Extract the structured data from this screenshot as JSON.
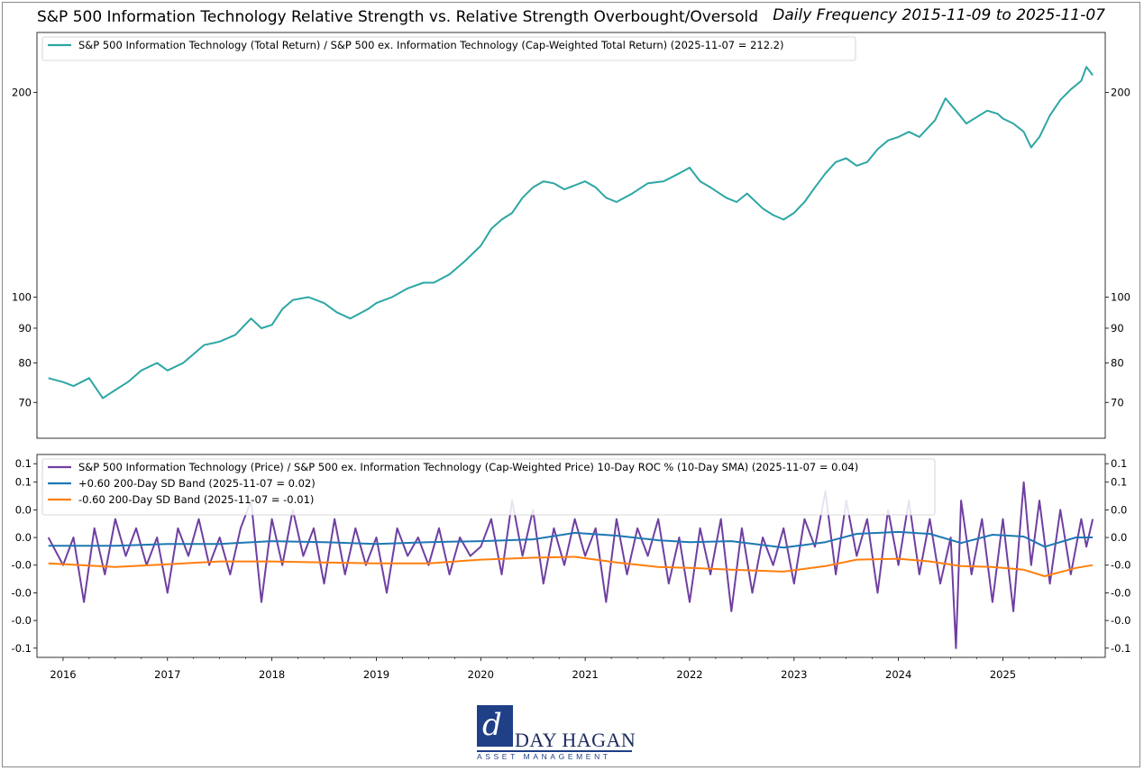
{
  "header": {
    "title": "S&P 500 Information Technology Relative Strength vs. Relative Strength Overbought/Oversold",
    "subtitle": "Daily Frequency 2015-11-09 to 2025-11-07"
  },
  "logo": {
    "mark": "d",
    "name": "DAY HAGAN",
    "sub": "ASSET MANAGEMENT"
  },
  "colors": {
    "rs_line": "#2ca6a4",
    "roc_line": "#6f3fa1",
    "upper_band": "#1f77b4",
    "lower_band": "#ff7f0e"
  },
  "chart_data": [
    {
      "type": "line",
      "panel": "top",
      "scale": "log",
      "ylim": [
        62,
        245
      ],
      "yticks": [
        70,
        80,
        90,
        100,
        200
      ],
      "ytick_labels": [
        "70",
        "80",
        "90",
        "100",
        "200"
      ],
      "xlim": [
        2015.75,
        2025.98
      ],
      "series": [
        {
          "name": "S&P 500 Information Technology (Total Return) / S&P 500 ex. Information Technology (Cap-Weighted Total Return) (2025-11-07 = 212.2)",
          "color": "#2ca6a4",
          "x": [
            2015.86,
            2016.0,
            2016.1,
            2016.25,
            2016.38,
            2016.5,
            2016.62,
            2016.75,
            2016.9,
            2017.0,
            2017.15,
            2017.35,
            2017.5,
            2017.65,
            2017.8,
            2017.9,
            2018.0,
            2018.1,
            2018.2,
            2018.35,
            2018.5,
            2018.62,
            2018.75,
            2018.92,
            2019.0,
            2019.15,
            2019.3,
            2019.45,
            2019.55,
            2019.7,
            2019.85,
            2020.0,
            2020.1,
            2020.2,
            2020.3,
            2020.4,
            2020.5,
            2020.6,
            2020.7,
            2020.8,
            2020.9,
            2021.0,
            2021.1,
            2021.2,
            2021.3,
            2021.45,
            2021.6,
            2021.75,
            2021.9,
            2022.0,
            2022.1,
            2022.2,
            2022.35,
            2022.45,
            2022.55,
            2022.7,
            2022.8,
            2022.9,
            2023.0,
            2023.1,
            2023.2,
            2023.3,
            2023.4,
            2023.5,
            2023.6,
            2023.7,
            2023.8,
            2023.9,
            2024.0,
            2024.1,
            2024.2,
            2024.35,
            2024.45,
            2024.55,
            2024.65,
            2024.75,
            2024.85,
            2024.95,
            2025.0,
            2025.1,
            2025.2,
            2025.27,
            2025.35,
            2025.45,
            2025.55,
            2025.65,
            2025.75,
            2025.8,
            2025.86
          ],
          "values": [
            76,
            75,
            74,
            76,
            71,
            73,
            75,
            78,
            80,
            78,
            80,
            85,
            86,
            88,
            93,
            90,
            91,
            96,
            99,
            100,
            98,
            95,
            93,
            96,
            98,
            100,
            103,
            105,
            105,
            108,
            113,
            119,
            126,
            130,
            133,
            140,
            145,
            148,
            147,
            144,
            146,
            148,
            145,
            140,
            138,
            142,
            147,
            148,
            152,
            155,
            148,
            145,
            140,
            138,
            142,
            135,
            132,
            130,
            133,
            138,
            145,
            152,
            158,
            160,
            156,
            158,
            165,
            170,
            172,
            175,
            172,
            182,
            196,
            188,
            180,
            184,
            188,
            186,
            183,
            180,
            175,
            166,
            172,
            185,
            195,
            202,
            208,
            218,
            212
          ]
        }
      ],
      "legend_position": "upper-left"
    },
    {
      "type": "line",
      "panel": "bottom",
      "ylim": [
        -0.11,
        0.11
      ],
      "yticks": [
        -0.1,
        -0.07,
        -0.04,
        -0.01,
        0.02,
        0.05,
        0.08,
        0.1
      ],
      "ytick_labels": [
        "-0.1",
        "-0.0",
        "-0.0",
        "-0.0",
        "0.0",
        "0.0",
        "0.1",
        "0.1"
      ],
      "xlim": [
        2015.75,
        2025.98
      ],
      "xticks": [
        2016,
        2017,
        2018,
        2019,
        2020,
        2021,
        2022,
        2023,
        2024,
        2025
      ],
      "xtick_labels": [
        "2016",
        "2017",
        "2018",
        "2019",
        "2020",
        "2021",
        "2022",
        "2023",
        "2024",
        "2025"
      ],
      "series": [
        {
          "name": "S&P 500 Information Technology (Price) / S&P 500 ex. Information Technology (Cap-Weighted Price) 10-Day ROC % (10-Day SMA) (2025-11-07 = 0.04)",
          "color": "#6f3fa1",
          "x": [
            2015.86,
            2016.0,
            2016.1,
            2016.2,
            2016.3,
            2016.4,
            2016.5,
            2016.6,
            2016.7,
            2016.8,
            2016.9,
            2017.0,
            2017.1,
            2017.2,
            2017.3,
            2017.4,
            2017.5,
            2017.6,
            2017.7,
            2017.8,
            2017.9,
            2018.0,
            2018.1,
            2018.2,
            2018.3,
            2018.4,
            2018.5,
            2018.6,
            2018.7,
            2018.8,
            2018.9,
            2019.0,
            2019.1,
            2019.2,
            2019.3,
            2019.4,
            2019.5,
            2019.6,
            2019.7,
            2019.8,
            2019.9,
            2020.0,
            2020.1,
            2020.2,
            2020.3,
            2020.4,
            2020.5,
            2020.6,
            2020.7,
            2020.8,
            2020.9,
            2021.0,
            2021.1,
            2021.2,
            2021.3,
            2021.4,
            2021.5,
            2021.6,
            2021.7,
            2021.8,
            2021.9,
            2022.0,
            2022.1,
            2022.2,
            2022.3,
            2022.4,
            2022.5,
            2022.6,
            2022.7,
            2022.8,
            2022.9,
            2023.0,
            2023.1,
            2023.2,
            2023.3,
            2023.4,
            2023.5,
            2023.6,
            2023.7,
            2023.8,
            2023.9,
            2024.0,
            2024.1,
            2024.2,
            2024.3,
            2024.4,
            2024.5,
            2024.55,
            2024.6,
            2024.7,
            2024.8,
            2024.9,
            2025.0,
            2025.1,
            2025.2,
            2025.27,
            2025.35,
            2025.45,
            2025.55,
            2025.65,
            2025.75,
            2025.8,
            2025.86
          ],
          "values": [
            0.02,
            -0.01,
            0.02,
            -0.05,
            0.03,
            -0.02,
            0.04,
            0.0,
            0.03,
            -0.01,
            0.02,
            -0.04,
            0.03,
            0.0,
            0.04,
            -0.01,
            0.02,
            -0.02,
            0.03,
            0.06,
            -0.05,
            0.04,
            -0.01,
            0.05,
            0.0,
            0.03,
            -0.03,
            0.04,
            -0.02,
            0.03,
            -0.01,
            0.02,
            -0.04,
            0.03,
            0.0,
            0.02,
            -0.01,
            0.03,
            -0.02,
            0.02,
            0.0,
            0.01,
            0.04,
            -0.02,
            0.06,
            0.0,
            0.05,
            -0.03,
            0.03,
            -0.01,
            0.04,
            0.0,
            0.03,
            -0.05,
            0.04,
            -0.02,
            0.03,
            0.0,
            0.04,
            -0.03,
            0.02,
            -0.05,
            0.03,
            -0.02,
            0.04,
            -0.06,
            0.03,
            -0.04,
            0.02,
            -0.01,
            0.03,
            -0.03,
            0.04,
            0.01,
            0.07,
            -0.02,
            0.06,
            0.0,
            0.04,
            -0.04,
            0.05,
            -0.01,
            0.06,
            -0.02,
            0.04,
            -0.03,
            0.02,
            -0.1,
            0.06,
            -0.02,
            0.04,
            -0.05,
            0.04,
            -0.06,
            0.08,
            -0.01,
            0.06,
            -0.03,
            0.05,
            -0.02,
            0.04,
            0.01,
            0.04
          ]
        },
        {
          "name": "+0.60 200-Day SD Band (2025-11-07 = 0.02)",
          "color": "#1f77b4",
          "x": [
            2015.86,
            2016.5,
            2017.0,
            2017.5,
            2018.0,
            2018.5,
            2019.0,
            2019.5,
            2020.0,
            2020.5,
            2020.9,
            2021.3,
            2021.7,
            2022.0,
            2022.4,
            2022.9,
            2023.3,
            2023.6,
            2024.0,
            2024.3,
            2024.6,
            2024.9,
            2025.2,
            2025.4,
            2025.7,
            2025.86
          ],
          "values": [
            0.011,
            0.011,
            0.013,
            0.013,
            0.016,
            0.015,
            0.013,
            0.015,
            0.016,
            0.018,
            0.025,
            0.022,
            0.017,
            0.015,
            0.016,
            0.009,
            0.015,
            0.024,
            0.026,
            0.024,
            0.014,
            0.023,
            0.021,
            0.01,
            0.02,
            0.02
          ]
        },
        {
          "name": "-0.60 200-Day SD Band (2025-11-07 = -0.01)",
          "color": "#ff7f0e",
          "x": [
            2015.86,
            2016.5,
            2017.0,
            2017.5,
            2018.0,
            2018.5,
            2019.0,
            2019.5,
            2020.0,
            2020.5,
            2020.9,
            2021.3,
            2021.7,
            2022.0,
            2022.4,
            2022.9,
            2023.3,
            2023.6,
            2024.0,
            2024.3,
            2024.6,
            2024.9,
            2025.2,
            2025.4,
            2025.7,
            2025.86
          ],
          "values": [
            -0.008,
            -0.012,
            -0.009,
            -0.006,
            -0.006,
            -0.007,
            -0.008,
            -0.008,
            -0.004,
            -0.002,
            -0.001,
            -0.007,
            -0.012,
            -0.013,
            -0.015,
            -0.017,
            -0.011,
            -0.004,
            -0.003,
            -0.006,
            -0.011,
            -0.012,
            -0.015,
            -0.022,
            -0.013,
            -0.01
          ]
        }
      ],
      "legend_position": "upper-left"
    }
  ]
}
